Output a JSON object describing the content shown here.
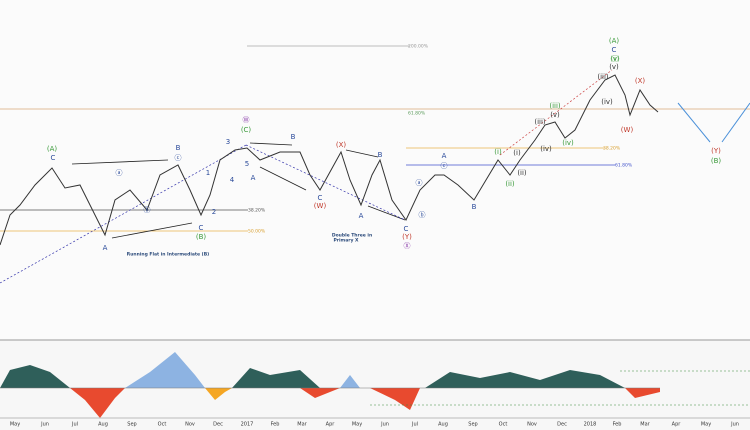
{
  "x_axis": {
    "labels": [
      "May",
      "Jun",
      "Jul",
      "Aug",
      "Sep",
      "Oct",
      "Nov",
      "Dec",
      "2017",
      "Feb",
      "Mar",
      "Apr",
      "May",
      "Jun",
      "Jul",
      "Aug",
      "Sep",
      "Oct",
      "Nov",
      "Dec",
      "2018",
      "Feb",
      "Mar",
      "Apr",
      "May",
      "Jun"
    ]
  },
  "fib_labels": [
    "200.00%",
    "61.80%",
    "38.20%",
    "50.00%",
    "38.20%",
    "61.80%"
  ],
  "annotations": [
    "Running Flat in  Intermediate (B)",
    "Double Three in",
    "Primary X"
  ],
  "wave_labels": [
    "(A)",
    "C",
    "A",
    "ⓐ",
    "ⓑ",
    "B",
    "ⓒ",
    "C",
    "(B)",
    "1",
    "2",
    "3",
    "4",
    "5",
    "(C)",
    "Ⓦ",
    "A",
    "B",
    "C",
    "(W)",
    "(X)",
    "A",
    "B",
    "C",
    "(Y)",
    "Ⓧ",
    "ⓐ",
    "ⓑ",
    "A",
    "ⓒ",
    "B",
    "(i)",
    "(ii)",
    "(iii)",
    "(iv)",
    "(v)",
    "(i)",
    "(ii)",
    "(iii)",
    "(iv)",
    "(v)",
    "(A)",
    "C",
    "ⓥ",
    "(v)",
    "(iii)",
    "(iv)",
    "(X)",
    "(W)",
    "(Y)",
    "(B)"
  ]
}
